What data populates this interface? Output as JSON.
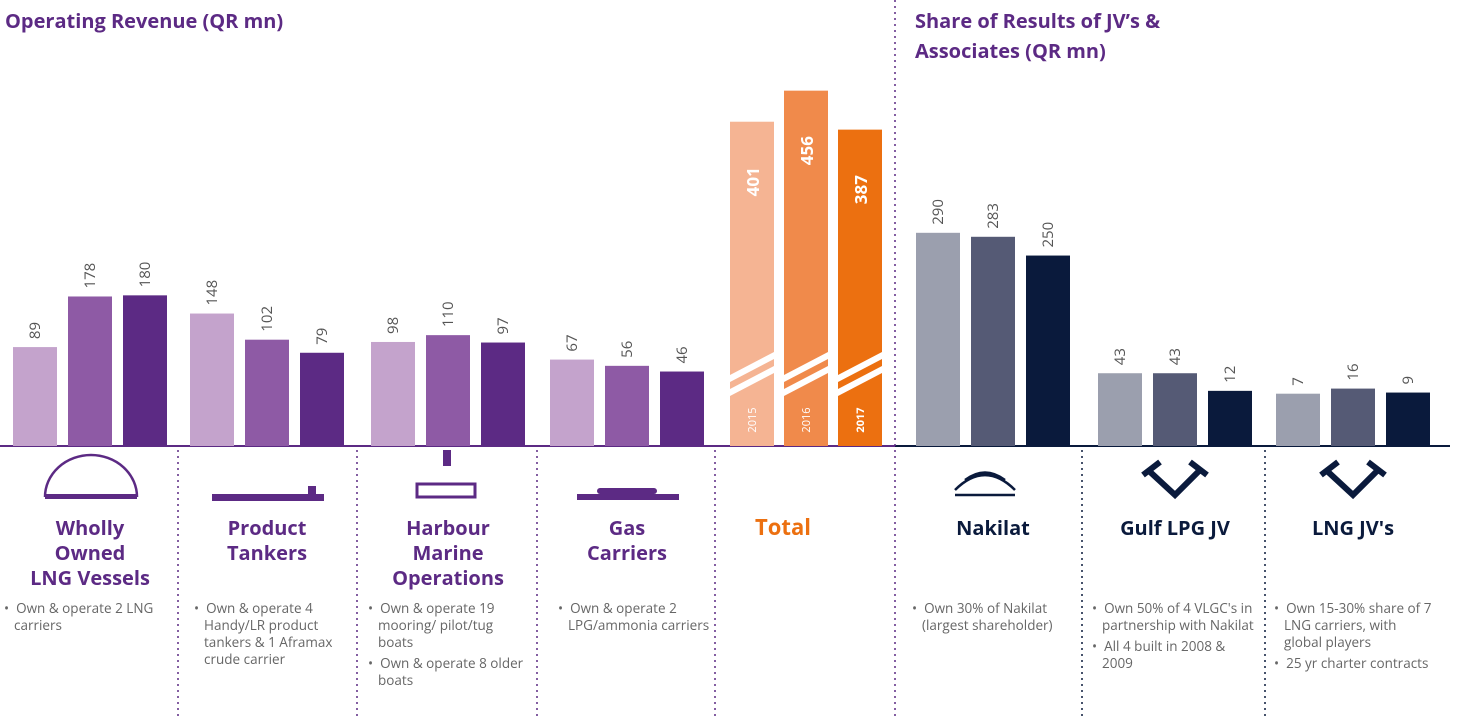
{
  "chart_data": [
    {
      "type": "bar",
      "title": "Operating Revenue (QR mn)",
      "ylim": [
        -85,
        550
      ],
      "colors": [
        "#c4a3cc",
        "#8e5aa5",
        "#5c2a84"
      ],
      "groups": [
        {
          "name": [
            "Wholly",
            "Owned",
            "LNG Vessels"
          ],
          "values": [
            89,
            178,
            180
          ],
          "bullets": [
            "Own & operate 2 LNG carriers"
          ]
        },
        {
          "name": [
            "Product",
            "Tankers"
          ],
          "values": [
            148,
            102,
            79
          ],
          "bullets": [
            "Own & operate 4 Handy/LR product tankers & 1 Aframax crude carrier"
          ]
        },
        {
          "name": [
            "Harbour",
            "Marine",
            "Operations"
          ],
          "values": [
            98,
            110,
            97
          ],
          "bullets": [
            "Own & operate 19 mooring/ pilot/tug boats",
            "Own & operate 8 older boats"
          ]
        },
        {
          "name": [
            "Gas",
            "Carriers"
          ],
          "values": [
            67,
            56,
            46
          ],
          "bullets": [
            "Own & operate 2 LPG/ammonia carriers"
          ]
        }
      ],
      "total": {
        "name": "Total",
        "values": [
          401,
          456,
          387
        ],
        "years": [
          "2015",
          "2016",
          "2017"
        ],
        "colors": [
          "#f5b493",
          "#f08a4b",
          "#ec7010"
        ],
        "ylim": [
          -173,
          466
        ]
      }
    },
    {
      "type": "bar",
      "title": "Share of Results of JV’s & Associates (QR mn)",
      "ylim": [
        -85,
        550
      ],
      "colors": [
        "#9b9fae",
        "#555a75",
        "#0a1a3c"
      ],
      "groups": [
        {
          "name": [
            "Nakilat"
          ],
          "values": [
            290,
            283,
            250
          ],
          "bullets": [
            "Own 30% of Nakilat (largest shareholder)"
          ]
        },
        {
          "name": [
            "Gulf LPG JV"
          ],
          "values": [
            43,
            43,
            12
          ],
          "bullets": [
            "Own 50% of 4 VLGC's in partnership with Nakilat",
            "All 4 built in 2008 & 2009"
          ]
        },
        {
          "name": [
            "LNG JV's"
          ],
          "values": [
            7,
            16,
            9
          ],
          "bullets": [
            "Own 15-30% share of 7 LNG carriers, with global players",
            "25 yr charter contracts"
          ]
        }
      ]
    }
  ]
}
